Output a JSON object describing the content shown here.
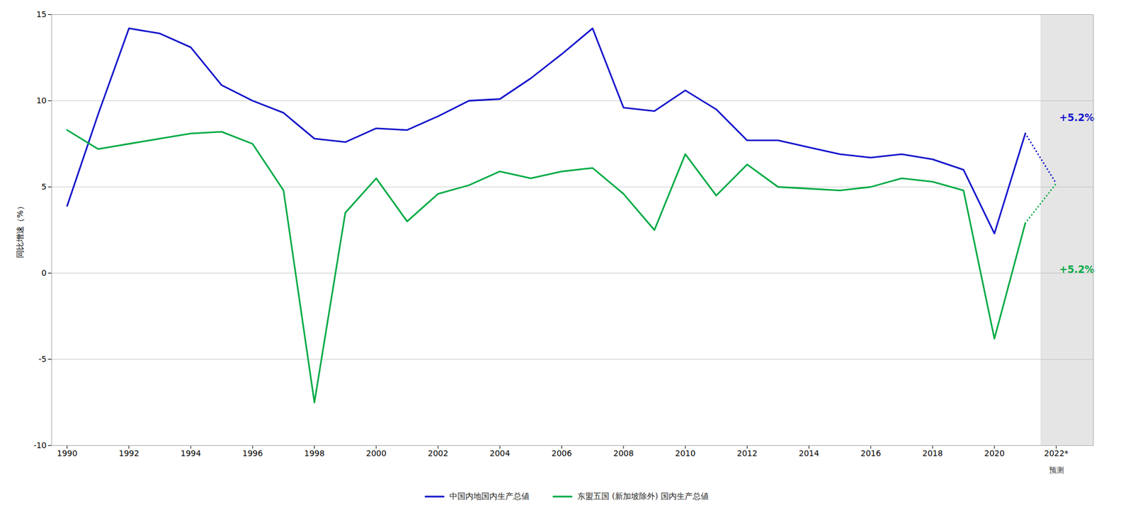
{
  "chart_data": {
    "type": "line",
    "x": [
      1990,
      1991,
      1992,
      1993,
      1994,
      1995,
      1996,
      1997,
      1998,
      1999,
      2000,
      2001,
      2002,
      2003,
      2004,
      2005,
      2006,
      2007,
      2008,
      2009,
      2010,
      2011,
      2012,
      2013,
      2014,
      2015,
      2016,
      2017,
      2018,
      2019,
      2020,
      2021,
      2022
    ],
    "series": [
      {
        "name": "中国内地国内生产总値",
        "color": "#1515cc",
        "values": [
          3.9,
          9.2,
          14.2,
          13.9,
          13.1,
          10.9,
          10.0,
          9.3,
          7.8,
          7.6,
          8.4,
          8.3,
          9.1,
          10.0,
          10.1,
          11.3,
          12.7,
          14.2,
          9.6,
          9.4,
          10.6,
          9.5,
          7.7,
          7.7,
          7.3,
          6.9,
          6.7,
          6.9,
          6.6,
          6.0,
          2.3,
          8.1,
          null
        ],
        "forecast_values": [
          null,
          null,
          null,
          null,
          null,
          null,
          null,
          null,
          null,
          null,
          null,
          null,
          null,
          null,
          null,
          null,
          null,
          null,
          null,
          null,
          null,
          null,
          null,
          null,
          null,
          null,
          null,
          null,
          null,
          null,
          null,
          8.1,
          5.2
        ]
      },
      {
        "name": "东盟五国 (新加坡除外) 国内生产总値",
        "color": "#00aa44",
        "values": [
          8.3,
          7.2,
          7.5,
          7.8,
          8.1,
          8.2,
          7.5,
          4.8,
          -7.5,
          3.5,
          5.5,
          3.0,
          4.6,
          5.1,
          5.9,
          5.5,
          5.9,
          6.1,
          4.6,
          2.5,
          6.9,
          4.5,
          6.3,
          5.0,
          4.9,
          4.8,
          5.0,
          5.5,
          5.3,
          4.8,
          -3.8,
          2.9,
          null
        ],
        "forecast_values": [
          null,
          null,
          null,
          null,
          null,
          null,
          null,
          null,
          null,
          null,
          null,
          null,
          null,
          null,
          null,
          null,
          null,
          null,
          null,
          null,
          null,
          null,
          null,
          null,
          null,
          null,
          null,
          null,
          null,
          null,
          null,
          2.9,
          5.2
        ]
      }
    ],
    "xlim": [
      1989.5,
      2023.2
    ],
    "xticks": [
      1990,
      1992,
      1994,
      1996,
      1998,
      2000,
      2002,
      2004,
      2006,
      2008,
      2010,
      2012,
      2014,
      2016,
      2018,
      2020,
      {
        "value": 2022,
        "label": "2022*"
      }
    ],
    "ylim": [
      -10,
      15
    ],
    "yticks": [
      -10,
      -5,
      0,
      5,
      10,
      15
    ],
    "ylabel": "同比增速（%）",
    "grid": "y",
    "legend": "bottom",
    "forecast_region": {
      "start": 2021.5,
      "color": "#e5e5e5",
      "label": "预测",
      "label_x": 2022
    },
    "annotations": [
      {
        "text": "+5.2%",
        "x": 2022.1,
        "y": 9.0,
        "color": "#1515cc"
      },
      {
        "text": "+5.2%",
        "x": 2022.1,
        "y": 0.2,
        "color": "#00aa44"
      }
    ]
  }
}
